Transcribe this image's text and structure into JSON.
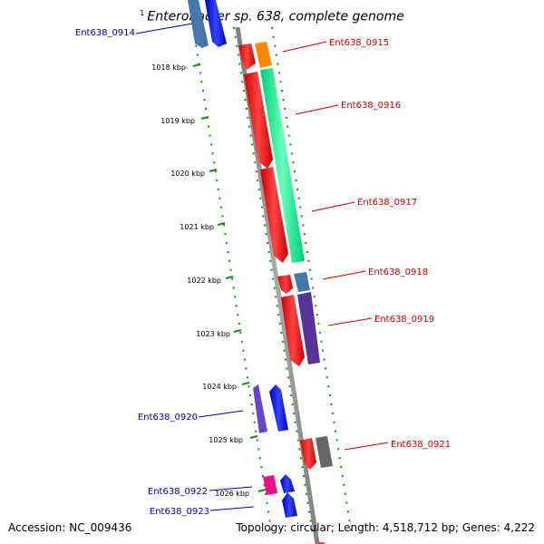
{
  "title": {
    "superscript": "1",
    "text": "Enterobacter sp. 638, complete genome"
  },
  "footer": {
    "accession": "Accession: NC_009436",
    "summary": "Topology: circular; Length: 4,518,712 bp; Genes: 4,222"
  },
  "axis_ticks": [
    "1018 kbp",
    "1019 kbp",
    "1020 kbp",
    "1021 kbp",
    "1022 kbp",
    "1023 kbp",
    "1024 kbp",
    "1025 kbp",
    "1026 kbp"
  ],
  "gene_labels": {
    "g0914": "Ent638_0914",
    "g0915": "Ent638_0915",
    "g0916": "Ent638_0916",
    "g0917": "Ent638_0917",
    "g0918": "Ent638_0918",
    "g0919": "Ent638_0919",
    "g0920": "Ent638_0920",
    "g0921": "Ent638_0921",
    "g0922": "Ent638_0922",
    "g0923": "Ent638_0923"
  },
  "colors": {
    "backbone": "#808080",
    "tick_dots": "#1a8a1a",
    "forward_label": "#cc0000",
    "reverse_label": "#0000aa",
    "gene_red": "#ff0000",
    "gene_orange": "#ff8800",
    "gene_green": "#00ee88",
    "gene_steel": "#4477aa",
    "gene_indigo": "#553399",
    "gene_blue": "#0000ee",
    "gene_violet": "#6644cc",
    "gene_gray": "#666666",
    "gene_pink": "#ee1188"
  }
}
